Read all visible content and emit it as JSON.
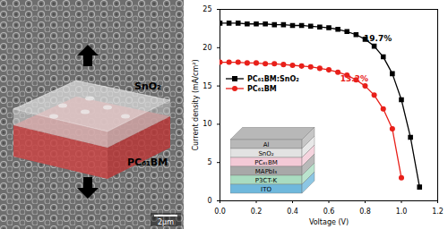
{
  "chart_data": {
    "type": "line",
    "x_label": "Voltage (V)",
    "y_label": "Current density (mA/cm²)",
    "x": [
      0,
      0.05,
      0.1,
      0.15,
      0.2,
      0.25,
      0.3,
      0.35,
      0.4,
      0.45,
      0.5,
      0.55,
      0.6,
      0.65,
      0.7,
      0.75,
      0.8,
      0.85,
      0.9,
      0.95,
      1.0,
      1.05,
      1.1
    ],
    "xlim": [
      0,
      1.2
    ],
    "xticks": [
      {
        "value": 0,
        "label": "0.0"
      },
      {
        "value": 0.2,
        "label": "0.2"
      },
      {
        "value": 0.4,
        "label": "0.4"
      },
      {
        "value": 0.6,
        "label": "0.6"
      },
      {
        "value": 0.8,
        "label": "0.8"
      },
      {
        "value": 1.0,
        "label": "1.0"
      },
      {
        "value": 1.2,
        "label": "1.2"
      }
    ],
    "ylim": [
      0,
      25
    ],
    "yticks": [
      0,
      5,
      10,
      15,
      20,
      25
    ],
    "grid": false,
    "legend": "left",
    "series": [
      {
        "name": "PC₆₁BM:SnO₂",
        "color": "#000000",
        "marker": "square",
        "values": [
          23.2,
          23.2,
          23.2,
          23.1,
          23.1,
          23.1,
          23.0,
          23.0,
          22.9,
          22.9,
          22.8,
          22.7,
          22.6,
          22.4,
          22.1,
          21.7,
          21.1,
          20.2,
          18.8,
          16.6,
          13.2,
          8.3,
          1.8
        ]
      },
      {
        "name": "PC₆₁BM",
        "color": "#e8201a",
        "marker": "circle",
        "values": [
          18.1,
          18.1,
          18.1,
          18.0,
          18.0,
          17.9,
          17.9,
          17.8,
          17.7,
          17.6,
          17.5,
          17.3,
          17.1,
          16.8,
          16.4,
          15.8,
          15.0,
          13.8,
          12.0,
          9.4,
          3.0,
          null,
          null
        ]
      }
    ],
    "annotations": [
      {
        "text": "19.7%",
        "x": 0.87,
        "y": 21.2
      },
      {
        "text": "13.2%",
        "x": 0.74,
        "y": 15.9
      }
    ]
  },
  "sem_image": {
    "labels": [
      "SnO₂",
      "PC₆₁BM"
    ],
    "scale_bar": "2μm"
  },
  "device_inset": {
    "layers": [
      "Al",
      "SnO₂",
      "PC₆₁BM",
      "MAPbI₃",
      "P3CT-K",
      "ITO"
    ]
  }
}
